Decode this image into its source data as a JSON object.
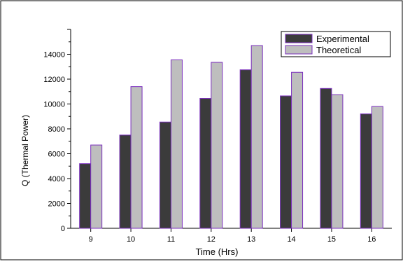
{
  "chart_data": {
    "type": "bar",
    "title": "",
    "xlabel": "Time (Hrs)",
    "ylabel": "Q (Thermal Power)",
    "categories": [
      "9",
      "10",
      "11",
      "12",
      "13",
      "14",
      "15",
      "16"
    ],
    "series": [
      {
        "name": "Experimental",
        "values": [
          5200,
          7500,
          8550,
          10450,
          12750,
          10650,
          11250,
          9200
        ]
      },
      {
        "name": "Theoretical",
        "values": [
          6700,
          11400,
          13550,
          13350,
          14700,
          12550,
          10750,
          9800
        ]
      }
    ],
    "ylim": [
      0,
      16000
    ],
    "yticks": [
      0,
      2000,
      4000,
      6000,
      8000,
      10000,
      12000,
      14000
    ],
    "legend_position": "top-right",
    "grid": false,
    "colors": {
      "experimental_fill": "#3b3b3b",
      "theoretical_fill": "#bebebe",
      "bar_stroke": "#7b2fbe"
    }
  }
}
